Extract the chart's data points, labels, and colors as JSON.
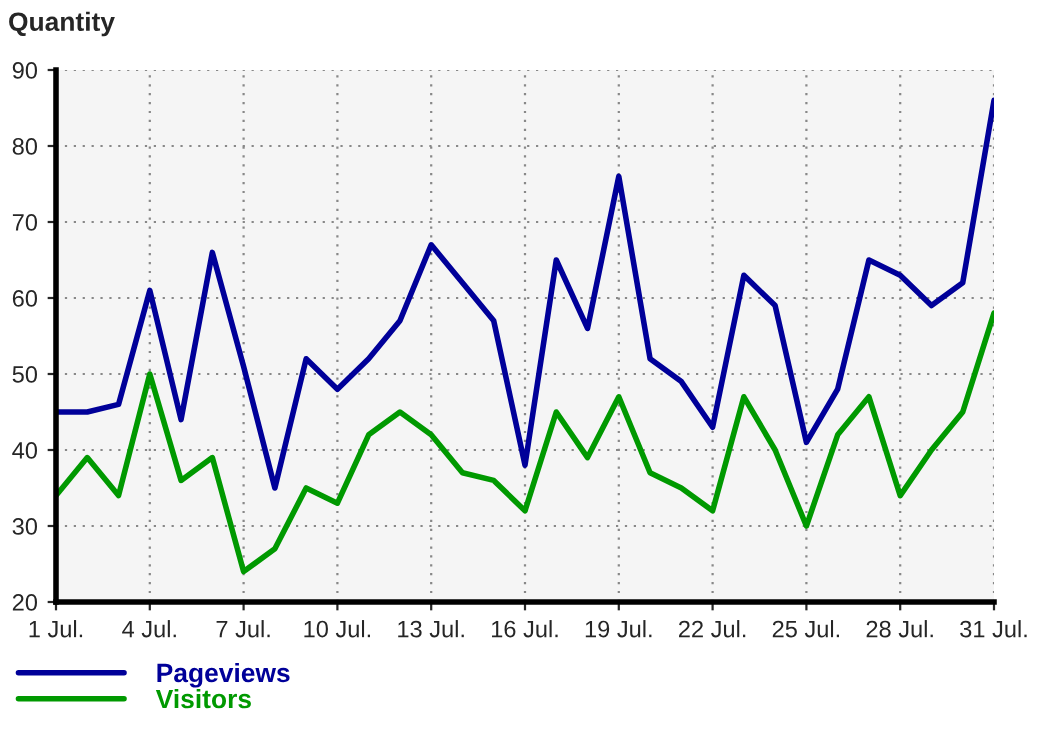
{
  "chart_data": {
    "type": "line",
    "ylabel": "Quantity",
    "categories": [
      "1 Jul.",
      null,
      null,
      "4 Jul.",
      null,
      null,
      "7 Jul.",
      null,
      null,
      "10 Jul.",
      null,
      null,
      "13 Jul.",
      null,
      null,
      "16 Jul.",
      null,
      null,
      "19 Jul.",
      null,
      null,
      "22 Jul.",
      null,
      null,
      "25 Jul.",
      null,
      null,
      "28 Jul.",
      null,
      null,
      "31 Jul."
    ],
    "series": [
      {
        "name": "Pageviews",
        "color": "#000099",
        "values": [
          45,
          45,
          46,
          61,
          44,
          66,
          51,
          35,
          52,
          48,
          52,
          57,
          67,
          62,
          57,
          38,
          65,
          56,
          76,
          52,
          49,
          43,
          63,
          59,
          41,
          48,
          65,
          63,
          59,
          62,
          86
        ]
      },
      {
        "name": "Visitors",
        "color": "#009900",
        "values": [
          34,
          39,
          34,
          50,
          36,
          39,
          24,
          27,
          35,
          33,
          42,
          45,
          42,
          37,
          36,
          32,
          45,
          39,
          47,
          37,
          35,
          32,
          47,
          40,
          30,
          42,
          47,
          34,
          40,
          45,
          58
        ]
      }
    ],
    "ylim": [
      20,
      90
    ],
    "yticks": [
      20,
      30,
      40,
      50,
      60,
      70,
      80,
      90
    ],
    "grid": true,
    "legend": "bottom left",
    "line_style": "solid",
    "marker": "none"
  }
}
